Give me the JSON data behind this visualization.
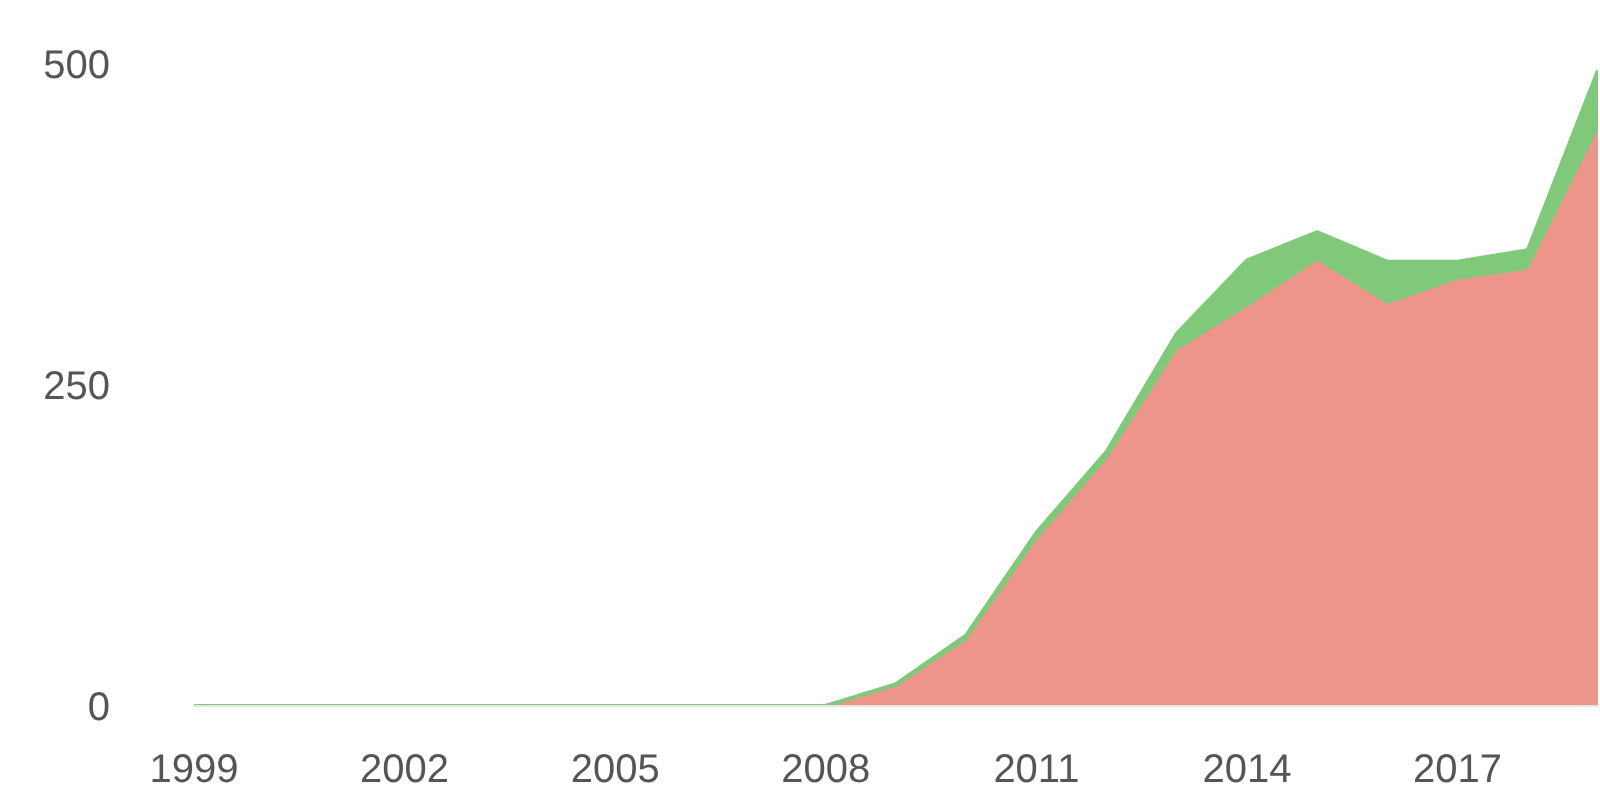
{
  "chart_data": {
    "type": "area",
    "stacked": true,
    "x": [
      1999,
      2000,
      2001,
      2002,
      2003,
      2004,
      2005,
      2006,
      2007,
      2008,
      2009,
      2010,
      2011,
      2012,
      2013,
      2014,
      2015,
      2016,
      2017,
      2018,
      2019
    ],
    "series": [
      {
        "color": "#ee958b",
        "values": [
          0,
          0,
          0,
          0,
          0,
          0,
          0,
          0,
          0,
          0,
          15,
          51,
          129,
          192,
          277,
          311,
          347,
          313,
          332,
          340,
          449
        ]
      },
      {
        "color": "#80c87a",
        "values": [
          0,
          0,
          0,
          0,
          0,
          0,
          0,
          0,
          0,
          0,
          2,
          4,
          6,
          6,
          13,
          36,
          22,
          33,
          14,
          15,
          46
        ]
      }
    ],
    "xlim": [
      1999,
      2019
    ],
    "xticks": [
      1999,
      2002,
      2005,
      2008,
      2011,
      2014,
      2017
    ],
    "ylim": [
      0,
      500
    ],
    "yticks": [
      0,
      250,
      500
    ],
    "grid": false,
    "legend": false
  }
}
